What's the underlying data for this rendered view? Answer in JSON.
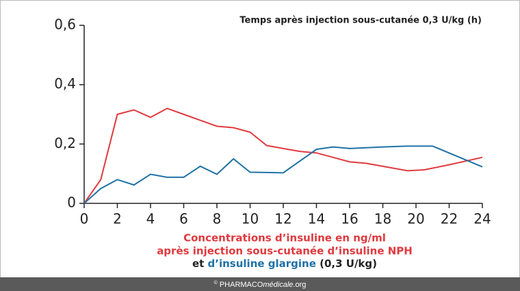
{
  "chart_data": {
    "type": "line",
    "title": "Temps après injection sous-cutanée 0,3 U/kg (h)",
    "xlim": [
      0,
      24
    ],
    "xticks": [
      0,
      2,
      4,
      6,
      8,
      10,
      12,
      14,
      16,
      18,
      20,
      22,
      24
    ],
    "ylim": [
      0,
      0.6
    ],
    "yticks": [
      0,
      {
        "value": 0.2,
        "label": "0,2"
      },
      {
        "value": 0.4,
        "label": "0,4"
      },
      {
        "value": 0.6,
        "label": "0,6"
      }
    ],
    "series": [
      {
        "color": "#e03a3e",
        "x": [
          0,
          1,
          2,
          3,
          4,
          5,
          6,
          7,
          8,
          9,
          10,
          11,
          12,
          13,
          14,
          15,
          16,
          17,
          18,
          19.5,
          20.5,
          22,
          24
        ],
        "values": [
          0,
          0.08,
          0.3,
          0.315,
          0.29,
          0.32,
          0.3,
          0.28,
          0.26,
          0.255,
          0.24,
          0.195,
          0.185,
          0.175,
          0.17,
          0.155,
          0.14,
          0.135,
          0.125,
          0.11,
          0.113,
          0.13,
          0.155
        ]
      },
      {
        "color": "#1f72a6",
        "x": [
          0,
          1,
          2,
          3,
          4,
          5,
          6,
          7,
          8,
          9,
          10,
          12,
          14,
          15,
          16,
          18,
          19.5,
          21,
          24
        ],
        "values": [
          0,
          0.05,
          0.08,
          0.062,
          0.098,
          0.088,
          0.088,
          0.125,
          0.098,
          0.15,
          0.105,
          0.103,
          0.182,
          0.19,
          0.185,
          0.19,
          0.193,
          0.193,
          0.123
        ]
      }
    ],
    "caption": {
      "line1": "Concentrations d’insuline en ng/ml",
      "line2": "après injection sous-cutanée d’insuline NPH",
      "line3": [
        "et ",
        "d’insuline glargine",
        " (0,3 U/kg)"
      ]
    },
    "footer": [
      "©",
      " PHARMACO",
      "médicale",
      ".org"
    ]
  }
}
